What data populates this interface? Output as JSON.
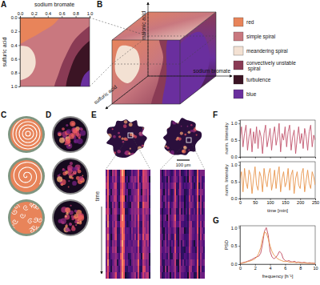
{
  "panel_labels": [
    "A",
    "B",
    "C",
    "D",
    "E",
    "F",
    "G"
  ],
  "phase_diagram": {
    "x_label": "sodium bromate",
    "y_label": "sulfuric acid",
    "xlim": [
      0,
      1
    ],
    "ylim": [
      0,
      1
    ],
    "xticks": [
      {
        "value": 0,
        "label": "0.0"
      },
      {
        "value": 0.2,
        "label": "0.2"
      },
      {
        "value": 0.4,
        "label": "0.4"
      },
      {
        "value": 0.6,
        "label": "0.6"
      },
      {
        "value": 0.8,
        "label": "0.8"
      },
      {
        "value": 1,
        "label": "1.0"
      }
    ],
    "yticks": [
      {
        "value": 0,
        "label": "0.0"
      },
      {
        "value": 0.2,
        "label": "0.2"
      },
      {
        "value": 0.4,
        "label": "0.4"
      },
      {
        "value": 0.6,
        "label": "0.6"
      },
      {
        "value": 0.8,
        "label": "0.8"
      },
      {
        "value": 1,
        "label": "1.0"
      }
    ]
  },
  "cube": {
    "axis_labels": [
      "malonic acid",
      "sodium bromate",
      "sulfuric acid"
    ]
  },
  "legend": [
    {
      "label": "red",
      "color": "#e8845a"
    },
    {
      "label": "simple spiral",
      "color": "#c9787f"
    },
    {
      "label": "meandering spiral",
      "color": "#f3e1d3"
    },
    {
      "label": "convectively unstable spiral",
      "color": "#8a3b55"
    },
    {
      "label": "turbulence",
      "color": "#3b1424"
    },
    {
      "label": "blue",
      "color": "#6a2f9e"
    }
  ],
  "micrographs": {
    "time_label": "time",
    "scale_bar": "100 µm"
  },
  "chart_data": [
    {
      "type": "line",
      "y_label": "norm. Intensity",
      "tick_labels": "y",
      "x": [
        0,
        5,
        10,
        15,
        20,
        25,
        30,
        35,
        40,
        45,
        50,
        55,
        60,
        65,
        70,
        75,
        80,
        85,
        90,
        95,
        100,
        105,
        110,
        115,
        120,
        125,
        130,
        135,
        140,
        145,
        150,
        155,
        160,
        165,
        170,
        175,
        180,
        185,
        190,
        195,
        200,
        205,
        210,
        215,
        220,
        225,
        230,
        235,
        240,
        245,
        250
      ],
      "series": [
        {
          "color": "#c2566e",
          "values": [
            0.55,
            0.9,
            0.3,
            0.7,
            0.95,
            0.2,
            0.6,
            0.85,
            0.15,
            0.75,
            0.4,
            0.9,
            0.25,
            0.8,
            0.6,
            0.1,
            0.7,
            0.95,
            0.3,
            0.55,
            0.85,
            0.2,
            0.65,
            0.9,
            0.35,
            0.6,
            1.0,
            0.15,
            0.7,
            0.5,
            0.9,
            0.3,
            0.75,
            0.95,
            0.2,
            0.6,
            0.8,
            0.1,
            0.55,
            0.9,
            0.4,
            0.7,
            0.25,
            0.85,
            0.6,
            0.2,
            0.75,
            0.95,
            0.3,
            0.65,
            0.5
          ]
        }
      ],
      "xlim": [
        0,
        250
      ],
      "ylim": [
        0,
        1.1
      ],
      "xticks": [
        0,
        50,
        100,
        150,
        200,
        250
      ],
      "yticks": [
        {
          "value": 0,
          "label": "0.0"
        },
        {
          "value": 0.5,
          "label": "0.5"
        },
        {
          "value": 1,
          "label": "1.0"
        }
      ]
    },
    {
      "type": "line",
      "y_label": "norm. Intensity",
      "x_label": "time [min]",
      "x": [
        0,
        5,
        10,
        15,
        20,
        25,
        30,
        35,
        40,
        45,
        50,
        55,
        60,
        65,
        70,
        75,
        80,
        85,
        90,
        95,
        100,
        105,
        110,
        115,
        120,
        125,
        130,
        135,
        140,
        145,
        150,
        155,
        160,
        165,
        170,
        175,
        180,
        185,
        190,
        195,
        200,
        205,
        210,
        215,
        220,
        225,
        230,
        235,
        240,
        245,
        250
      ],
      "series": [
        {
          "color": "#e8944c",
          "values": [
            0.6,
            0.8,
            0.2,
            0.9,
            0.5,
            0.3,
            0.85,
            0.7,
            0.15,
            0.6,
            0.95,
            0.4,
            0.25,
            0.8,
            0.65,
            0.2,
            0.9,
            0.55,
            0.35,
            0.75,
            0.9,
            0.25,
            0.5,
            0.85,
            0.3,
            0.7,
            0.95,
            0.2,
            0.6,
            0.8,
            0.35,
            0.5,
            0.9,
            0.25,
            0.7,
            0.85,
            0.15,
            0.6,
            0.8,
            0.4,
            0.3,
            0.75,
            0.9,
            0.2,
            0.55,
            0.85,
            0.45,
            0.3,
            0.8,
            0.65,
            0.4
          ]
        }
      ],
      "xlim": [
        0,
        250
      ],
      "ylim": [
        0,
        1.1
      ],
      "xticks": [
        0,
        50,
        100,
        150,
        200,
        250
      ],
      "yticks": [
        {
          "value": 0,
          "label": "0.0"
        },
        {
          "value": 0.5,
          "label": "0.5"
        },
        {
          "value": 1,
          "label": "1.0"
        }
      ]
    },
    {
      "type": "line",
      "y_label": "PSD",
      "x_label": "frequency [h⁻¹]",
      "x": [
        0,
        0.25,
        0.5,
        0.75,
        1,
        1.25,
        1.5,
        1.75,
        2,
        2.25,
        2.5,
        2.75,
        3,
        3.25,
        3.5,
        3.75,
        4,
        4.25,
        4.5,
        4.75,
        5,
        5.25,
        5.5,
        5.75,
        6,
        6.25,
        6.5,
        6.75,
        7,
        7.25,
        7.5,
        7.75,
        8,
        8.25,
        8.5,
        8.75,
        9,
        9.25,
        9.5,
        9.75,
        10
      ],
      "series": [
        {
          "color": "#c0485e",
          "values": [
            0.02,
            0.03,
            0.05,
            0.06,
            0.08,
            0.1,
            0.12,
            0.15,
            0.18,
            0.2,
            0.22,
            0.3,
            0.55,
            0.9,
            1.0,
            0.8,
            0.35,
            0.2,
            0.15,
            0.18,
            0.25,
            0.35,
            0.3,
            0.15,
            0.1,
            0.08,
            0.1,
            0.07,
            0.06,
            0.08,
            0.05,
            0.06,
            0.05,
            0.04,
            0.05,
            0.04,
            0.03,
            0.04,
            0.03,
            0.03,
            0.02
          ]
        },
        {
          "color": "#e8944c",
          "values": [
            0.02,
            0.03,
            0.04,
            0.05,
            0.07,
            0.08,
            0.1,
            0.12,
            0.15,
            0.2,
            0.3,
            0.45,
            0.7,
            0.88,
            0.85,
            0.7,
            0.5,
            0.35,
            0.25,
            0.2,
            0.15,
            0.12,
            0.1,
            0.08,
            0.07,
            0.08,
            0.06,
            0.05,
            0.06,
            0.05,
            0.04,
            0.05,
            0.04,
            0.03,
            0.04,
            0.03,
            0.03,
            0.02,
            0.03,
            0.02,
            0.02
          ]
        }
      ],
      "xlim": [
        0,
        10
      ],
      "ylim": [
        0,
        1.05
      ],
      "xticks": [
        0,
        2,
        4,
        6,
        8,
        10
      ],
      "yticks": [
        {
          "value": 0,
          "label": "0.0"
        },
        {
          "value": 0.5,
          "label": "0.5"
        },
        {
          "value": 1,
          "label": "1.0"
        }
      ]
    }
  ]
}
